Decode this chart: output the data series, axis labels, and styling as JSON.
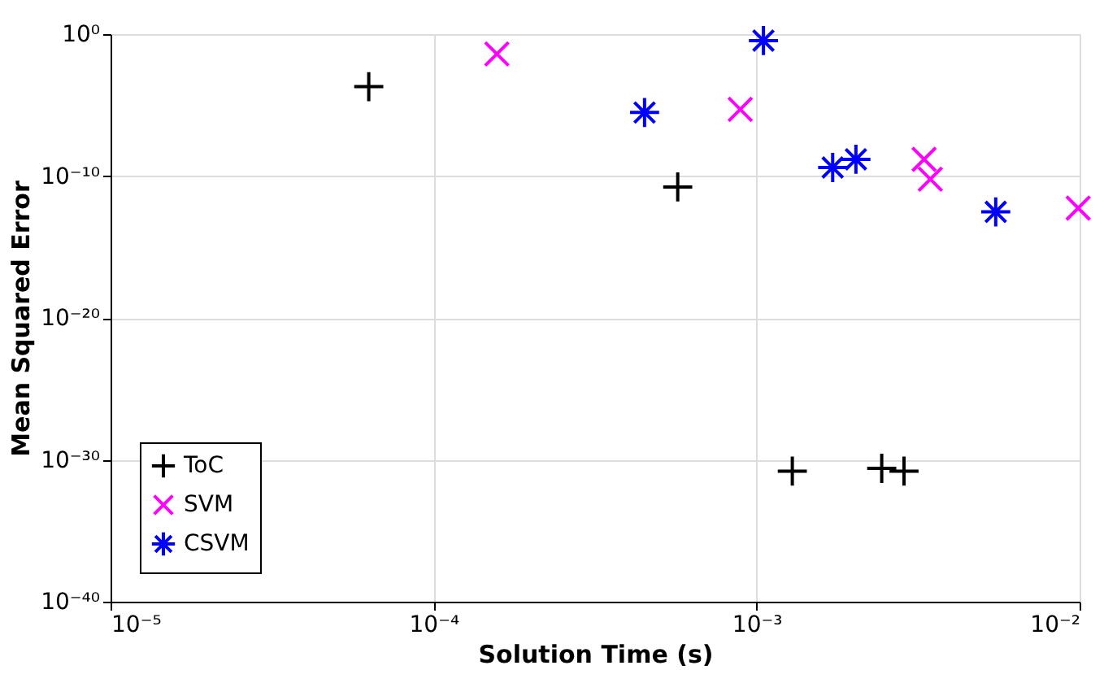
{
  "chart_data": {
    "type": "scatter",
    "xlabel": "Solution Time (s)",
    "ylabel": "Mean Squared Error",
    "log": "xy",
    "grid": true,
    "legend": "bottom left",
    "xlim": [
      1e-05,
      0.01
    ],
    "xticks": [
      {
        "value": 1e-05,
        "label": "10⁻⁵"
      },
      {
        "value": 0.0001,
        "label": "10⁻⁴"
      },
      {
        "value": 0.001,
        "label": "10⁻³"
      },
      {
        "value": 0.01,
        "label": "10⁻²"
      }
    ],
    "ylim": [
      1e-40,
      1
    ],
    "yticks": [
      {
        "value": 1e-40,
        "label": "10⁻⁴⁰"
      },
      {
        "value": 1e-30,
        "label": "10⁻³⁰"
      },
      {
        "value": 1e-20,
        "label": "10⁻²⁰"
      },
      {
        "value": 1e-10,
        "label": "10⁻¹⁰"
      },
      {
        "value": 1,
        "label": "10⁰"
      }
    ],
    "series": [
      {
        "name": "ToC",
        "color": "#000000",
        "marker": "cross",
        "x": [
          6.3e-05,
          0.00057,
          0.00129,
          0.00244,
          0.00286
        ],
        "values": [
          0.0002,
          1.7e-11,
          1.6e-31,
          2.5e-31,
          1.6e-31
        ]
      },
      {
        "name": "SVM",
        "color": "#ff00ff",
        "marker": "x",
        "x": [
          0.000157,
          0.00089,
          0.0033,
          0.00345,
          0.0099
        ],
        "values": [
          0.04,
          5e-06,
          1.5e-09,
          6e-11,
          5.5e-13
        ]
      },
      {
        "name": "CSVM",
        "color": "#0000ff",
        "x": [
          0.00105,
          0.00045,
          0.00172,
          0.00203,
          0.0055
        ],
        "values": [
          0.35,
          3e-06,
          4e-10,
          1.5e-09,
          3e-13
        ]
      }
    ]
  }
}
